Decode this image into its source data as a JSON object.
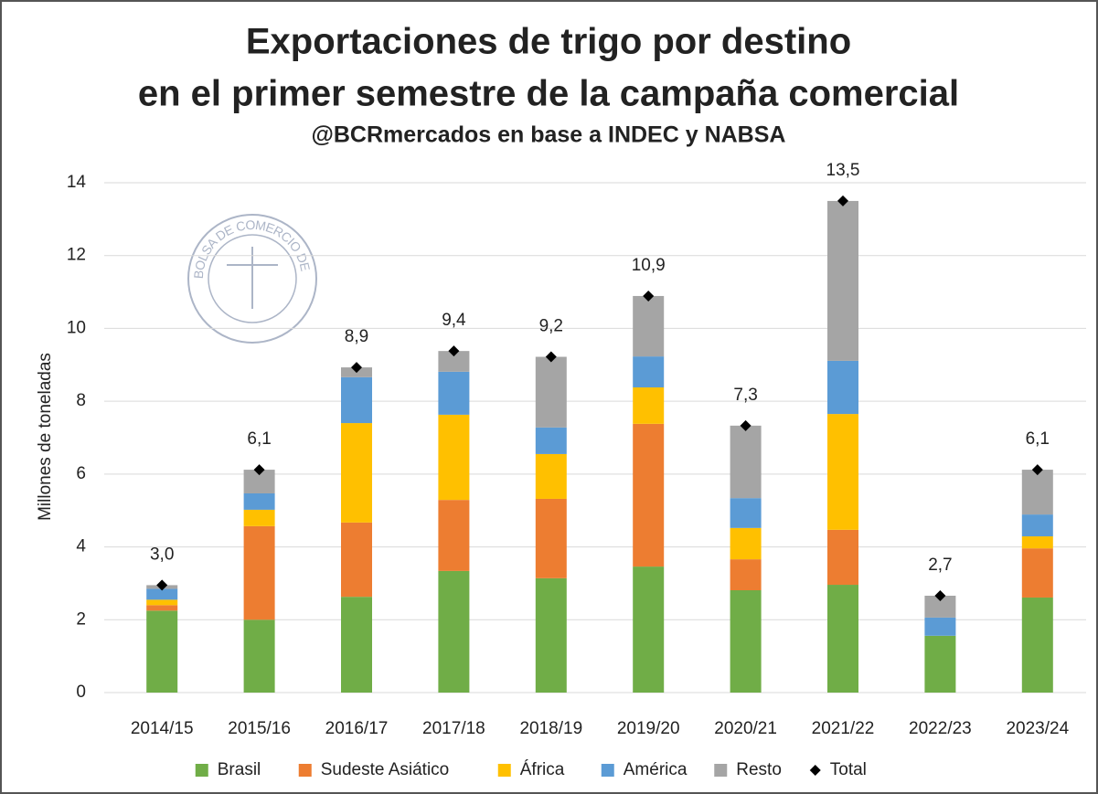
{
  "chart_data": {
    "type": "bar",
    "stacked": true,
    "title": "Exportaciones de trigo por destino",
    "title_line2": "en el primer semestre de la campaña comercial",
    "subtitle": "@BCRmercados en base a INDEC y NABSA",
    "watermark": "BOLSA DE COMERCIO DE ROSARIO",
    "y_label": "Millones de toneladas",
    "categories": [
      "2014/15",
      "2015/16",
      "2016/17",
      "2017/18",
      "2018/19",
      "2019/20",
      "2020/21",
      "2021/22",
      "2022/23",
      "2023/24"
    ],
    "series": [
      {
        "name": "Brasil",
        "color": "#70ad47",
        "values": [
          2.25,
          2.0,
          2.63,
          3.34,
          3.14,
          3.46,
          2.81,
          2.96,
          1.56,
          2.61
        ]
      },
      {
        "name": "Sudeste Asiático",
        "color": "#ed7d31",
        "values": [
          0.15,
          2.57,
          2.04,
          1.95,
          2.18,
          3.92,
          0.85,
          1.51,
          0,
          1.35
        ]
      },
      {
        "name": "África",
        "color": "#ffc000",
        "values": [
          0.15,
          0.45,
          2.73,
          2.34,
          1.23,
          1.0,
          0.86,
          3.18,
          0,
          0.33
        ]
      },
      {
        "name": "América",
        "color": "#5b9bd5",
        "values": [
          0.3,
          0.45,
          1.26,
          1.18,
          0.73,
          0.85,
          0.82,
          1.46,
          0.5,
          0.6
        ]
      },
      {
        "name": "Resto",
        "color": "#a5a5a5",
        "values": [
          0.1,
          0.65,
          0.27,
          0.57,
          1.94,
          1.66,
          1.99,
          4.39,
          0.6,
          1.23
        ]
      },
      {
        "name": "Total",
        "color": "#000000",
        "marker": "diamond",
        "values": [
          2.95,
          6.12,
          8.93,
          9.38,
          9.22,
          10.89,
          7.33,
          13.5,
          2.66,
          6.12
        ],
        "value_labels": [
          "3,0",
          "6,1",
          "8,9",
          "9,4",
          "9,2",
          "10,9",
          "7,3",
          "13,5",
          "2,7",
          "6,1"
        ]
      }
    ],
    "ylim": [
      0,
      14
    ],
    "yticks": [
      0,
      2,
      4,
      6,
      8,
      10,
      12,
      14
    ],
    "grid": true
  }
}
